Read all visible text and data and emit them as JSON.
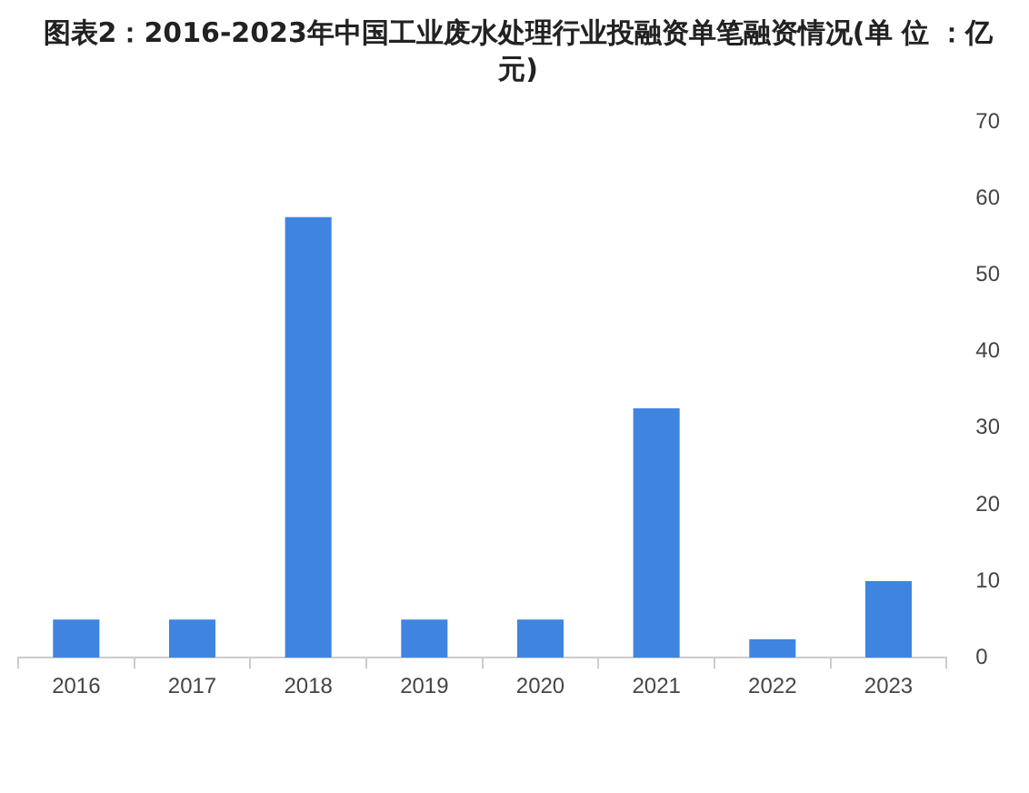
{
  "chart_data": {
    "type": "bar",
    "title": "图表2：2016-2023年中国工业废水处理行业投融资单笔融资情况(单 位 ：亿元)",
    "categories": [
      "2016",
      "2017",
      "2018",
      "2019",
      "2020",
      "2021",
      "2022",
      "2023"
    ],
    "values": [
      5,
      5,
      57.6,
      5,
      5,
      32.6,
      2.4,
      10
    ],
    "color": "#3f85e0",
    "ylim": [
      0,
      70
    ],
    "yticks": [
      0,
      10,
      20,
      30,
      40,
      50,
      60,
      70
    ],
    "grid": false
  }
}
